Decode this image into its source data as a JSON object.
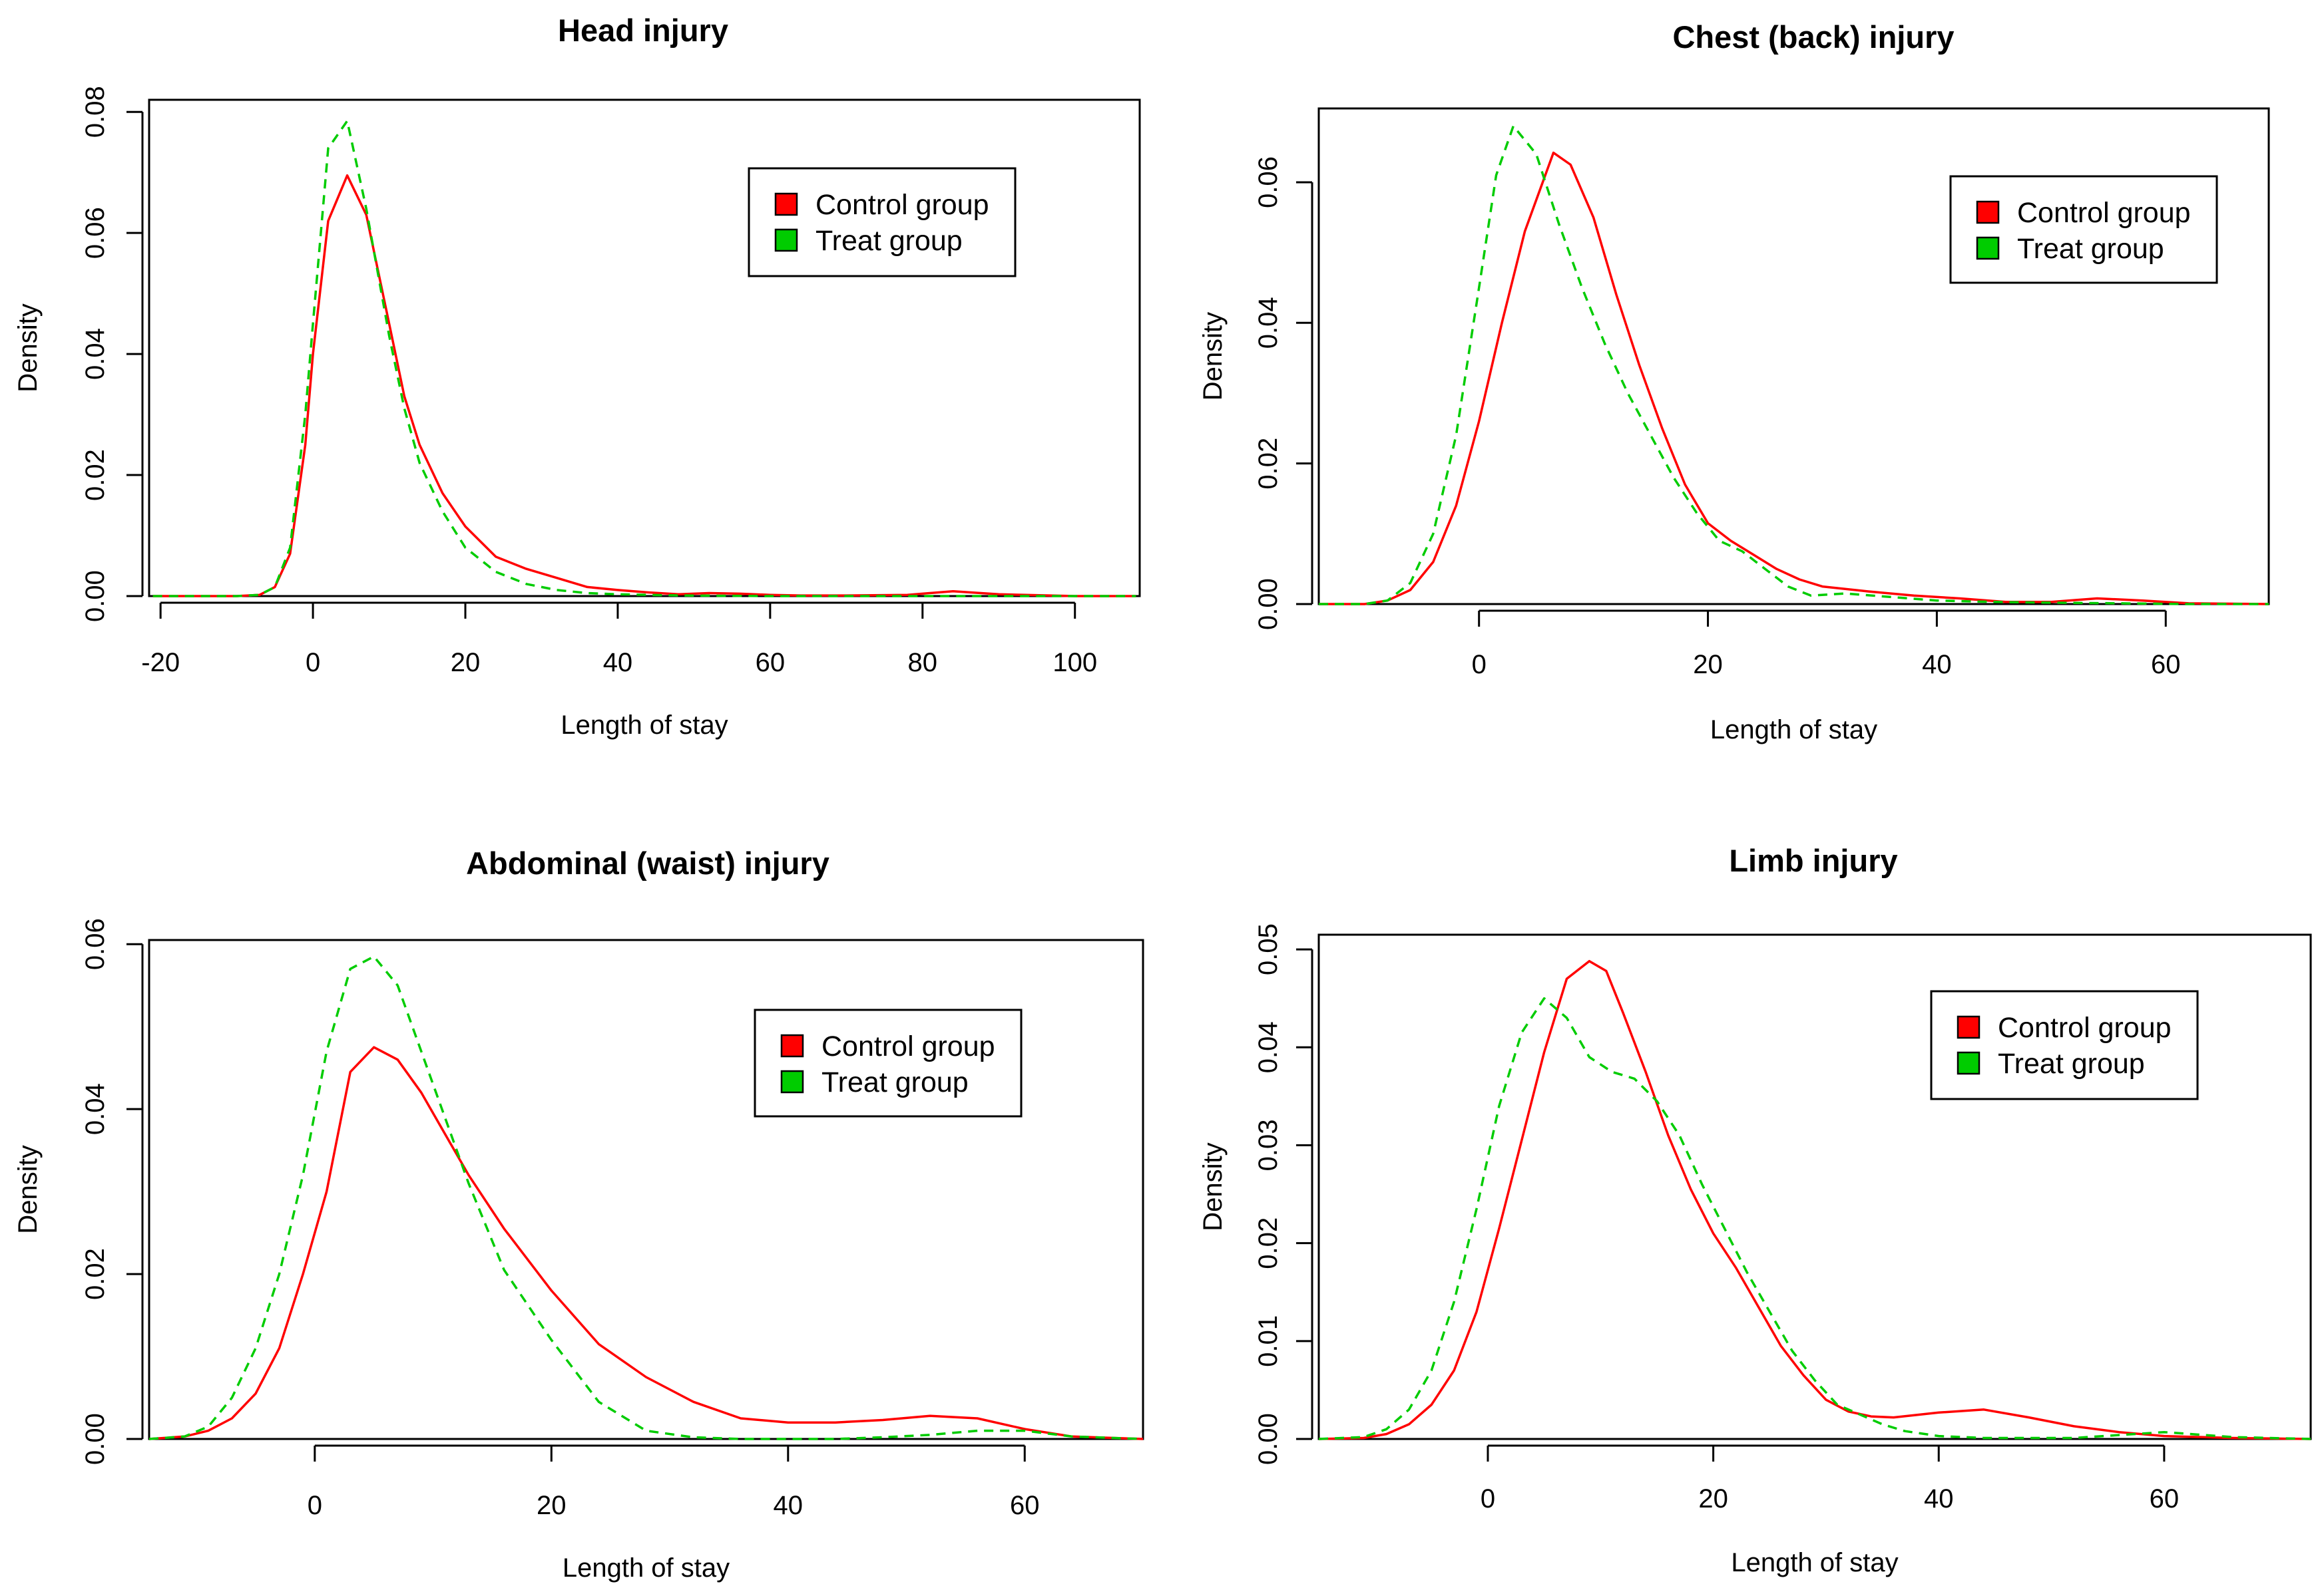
{
  "chart_data": [
    {
      "type": "line",
      "title": "Head injury",
      "xlabel": "Length of stay",
      "ylabel": "Density",
      "xlim": [
        -21.5,
        108.5
      ],
      "ylim": [
        0,
        0.082
      ],
      "xticks": [
        -20,
        0,
        20,
        40,
        60,
        80,
        100
      ],
      "yticks": [
        0.0,
        0.02,
        0.04,
        0.06,
        0.08
      ],
      "ytick_labels": [
        "0.00",
        "0.02",
        "0.04",
        "0.06",
        "0.08"
      ],
      "legend_position": "top-right",
      "series": [
        {
          "name": "Control group",
          "color": "#ff0000",
          "dash": "solid",
          "x": [
            -21,
            -10,
            -7,
            -5,
            -3,
            -1,
            0,
            2,
            4.5,
            7,
            10,
            12,
            14,
            17,
            20,
            24,
            28,
            32,
            36,
            40,
            44,
            48,
            52,
            56,
            60,
            64,
            70,
            78,
            84,
            90,
            100,
            108
          ],
          "y": [
            0,
            0,
            0.0002,
            0.0015,
            0.007,
            0.025,
            0.04,
            0.062,
            0.0695,
            0.063,
            0.045,
            0.033,
            0.025,
            0.017,
            0.0115,
            0.0065,
            0.0045,
            0.003,
            0.0015,
            0.001,
            0.0006,
            0.0003,
            0.0005,
            0.0004,
            0.0002,
            0.0001,
            0.0001,
            0.0002,
            0.0008,
            0.0003,
            0,
            0
          ]
        },
        {
          "name": "Treat group",
          "color": "#00cc00",
          "dash": "dashed",
          "x": [
            -21,
            -10,
            -7,
            -5,
            -3,
            -1,
            0,
            2,
            4.5,
            7,
            10,
            12,
            14,
            17,
            20,
            24,
            28,
            32,
            36,
            40,
            48,
            60,
            80,
            108
          ],
          "y": [
            0,
            0,
            0.0002,
            0.0015,
            0.008,
            0.03,
            0.045,
            0.074,
            0.0785,
            0.064,
            0.043,
            0.031,
            0.022,
            0.014,
            0.008,
            0.004,
            0.002,
            0.001,
            0.0005,
            0.0003,
            0.0001,
            0,
            0,
            0
          ]
        }
      ]
    },
    {
      "type": "line",
      "title": "Chest (back) injury",
      "xlabel": "Length of stay",
      "ylabel": "Density",
      "xlim": [
        -14,
        69
      ],
      "ylim": [
        0,
        0.0705
      ],
      "xticks": [
        0,
        20,
        40,
        60
      ],
      "yticks": [
        0.0,
        0.02,
        0.04,
        0.06
      ],
      "ytick_labels": [
        "0.00",
        "0.02",
        "0.04",
        "0.06"
      ],
      "legend_position": "top-right",
      "series": [
        {
          "name": "Control group",
          "color": "#ff0000",
          "dash": "solid",
          "x": [
            -14,
            -10,
            -8,
            -6,
            -4,
            -2,
            0,
            2,
            4,
            6.5,
            8,
            10,
            12,
            14,
            16,
            18,
            20,
            22,
            24,
            26,
            28,
            30,
            34,
            38,
            42,
            46,
            50,
            54,
            58,
            62,
            69
          ],
          "y": [
            0,
            0,
            0.0005,
            0.002,
            0.006,
            0.014,
            0.026,
            0.04,
            0.053,
            0.0642,
            0.0625,
            0.055,
            0.044,
            0.034,
            0.025,
            0.017,
            0.0115,
            0.009,
            0.007,
            0.005,
            0.0035,
            0.0025,
            0.0018,
            0.0012,
            0.0008,
            0.0003,
            0.0003,
            0.0008,
            0.0005,
            0.0001,
            0
          ]
        },
        {
          "name": "Treat group",
          "color": "#00cc00",
          "dash": "dashed",
          "x": [
            -14,
            -10,
            -8,
            -6,
            -4,
            -2,
            0,
            1.5,
            3,
            5,
            7,
            9,
            11,
            13,
            15,
            17,
            19,
            21,
            23,
            25,
            27,
            29,
            32,
            36,
            40,
            45,
            50,
            56,
            62,
            69
          ],
          "y": [
            0,
            0,
            0.0005,
            0.003,
            0.01,
            0.024,
            0.045,
            0.061,
            0.068,
            0.064,
            0.054,
            0.045,
            0.037,
            0.03,
            0.024,
            0.018,
            0.013,
            0.009,
            0.0075,
            0.005,
            0.0025,
            0.0012,
            0.0015,
            0.001,
            0.0005,
            0.0003,
            0.0002,
            0.0001,
            0,
            0
          ]
        }
      ]
    },
    {
      "type": "line",
      "title": "Abdominal (waist) injury",
      "xlabel": "Length of stay",
      "ylabel": "Density",
      "xlim": [
        -14,
        70
      ],
      "ylim": [
        0,
        0.0605
      ],
      "xticks": [
        0,
        20,
        40,
        60
      ],
      "yticks": [
        0.0,
        0.02,
        0.04,
        0.06
      ],
      "ytick_labels": [
        "0.00",
        "0.02",
        "0.04",
        "0.06"
      ],
      "legend_position": "top-right",
      "series": [
        {
          "name": "Control group",
          "color": "#ff0000",
          "dash": "solid",
          "x": [
            -14,
            -11,
            -9,
            -7,
            -5,
            -3,
            -1,
            1,
            3,
            5,
            7,
            9,
            11,
            13,
            16,
            20,
            24,
            28,
            32,
            36,
            40,
            44,
            48,
            52,
            56,
            60,
            64,
            70
          ],
          "y": [
            0,
            0.0003,
            0.001,
            0.0025,
            0.0055,
            0.011,
            0.02,
            0.03,
            0.0445,
            0.0475,
            0.046,
            0.042,
            0.037,
            0.032,
            0.0255,
            0.018,
            0.0115,
            0.0075,
            0.0045,
            0.0025,
            0.002,
            0.002,
            0.0023,
            0.0028,
            0.0025,
            0.0012,
            0.0003,
            0
          ]
        },
        {
          "name": "Treat group",
          "color": "#00cc00",
          "dash": "dashed",
          "x": [
            -14,
            -11,
            -9,
            -7,
            -5,
            -3,
            -1,
            1,
            3,
            5,
            7,
            9,
            11,
            13,
            16,
            20,
            24,
            28,
            32,
            36,
            40,
            44,
            48,
            52,
            56,
            60,
            64,
            70
          ],
          "y": [
            0,
            0.0003,
            0.0015,
            0.005,
            0.011,
            0.02,
            0.032,
            0.047,
            0.057,
            0.0585,
            0.055,
            0.047,
            0.039,
            0.031,
            0.0205,
            0.012,
            0.0045,
            0.001,
            0.0002,
            0,
            0,
            0,
            0.0002,
            0.0005,
            0.001,
            0.001,
            0.0003,
            0
          ]
        }
      ]
    },
    {
      "type": "line",
      "title": "Limb injury",
      "xlabel": "Length of stay",
      "ylabel": "Density",
      "xlim": [
        -15,
        73
      ],
      "ylim": [
        0,
        0.0515
      ],
      "xticks": [
        0,
        20,
        40,
        60
      ],
      "yticks": [
        0.0,
        0.01,
        0.02,
        0.03,
        0.04,
        0.05
      ],
      "ytick_labels": [
        "0.00",
        "0.01",
        "0.02",
        "0.03",
        "0.04",
        "0.05"
      ],
      "legend_position": "top-right",
      "series": [
        {
          "name": "Control group",
          "color": "#ff0000",
          "dash": "solid",
          "x": [
            -15,
            -11,
            -9,
            -7,
            -5,
            -3,
            -1,
            1,
            3,
            5,
            7,
            9,
            10.5,
            12,
            14,
            16,
            18,
            20,
            22,
            24,
            26,
            28,
            30,
            32,
            34,
            36,
            40,
            44,
            48,
            52,
            56,
            60,
            66,
            73
          ],
          "y": [
            0,
            0.0001,
            0.0005,
            0.0015,
            0.0035,
            0.007,
            0.013,
            0.0215,
            0.0305,
            0.0395,
            0.047,
            0.0488,
            0.0478,
            0.0435,
            0.0375,
            0.031,
            0.0255,
            0.021,
            0.0175,
            0.0135,
            0.0095,
            0.0065,
            0.004,
            0.0028,
            0.0023,
            0.0022,
            0.0027,
            0.003,
            0.0022,
            0.0013,
            0.0007,
            0.0003,
            0.0001,
            0
          ]
        },
        {
          "name": "Treat group",
          "color": "#00cc00",
          "dash": "dashed",
          "x": [
            -15,
            -11,
            -9,
            -7,
            -5,
            -3,
            -1,
            1,
            3,
            5,
            7,
            9,
            11,
            13,
            15,
            17,
            19,
            21,
            23,
            25,
            27,
            29,
            31,
            33,
            35,
            37,
            40,
            44,
            48,
            52,
            56,
            60,
            66,
            73
          ],
          "y": [
            0,
            0.0002,
            0.001,
            0.003,
            0.007,
            0.014,
            0.0235,
            0.034,
            0.0415,
            0.045,
            0.043,
            0.039,
            0.0375,
            0.0368,
            0.0345,
            0.031,
            0.026,
            0.0215,
            0.017,
            0.013,
            0.009,
            0.006,
            0.0035,
            0.0025,
            0.0015,
            0.0008,
            0.0003,
            0.0001,
            0.0001,
            0.0001,
            0.0004,
            0.0007,
            0.0002,
            0
          ]
        }
      ]
    }
  ]
}
